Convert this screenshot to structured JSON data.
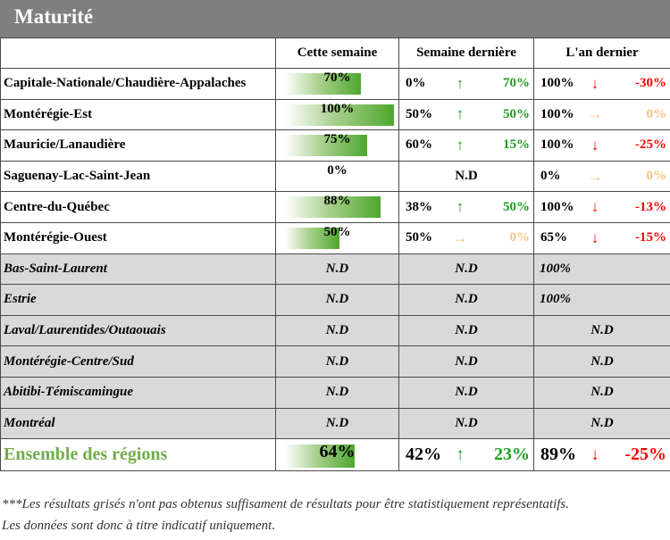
{
  "title": "Maturité",
  "headers": [
    "",
    "Cette semaine",
    "Semaine dernière",
    "L'an dernier"
  ],
  "rows": [
    {
      "name": "Capitale-Nationale/Chaudière-Appalaches",
      "this_week": "70%",
      "this_week_value": 0.7,
      "last_week": "0%",
      "lw_arrow": "↑",
      "lw_color": "#1e9e1e",
      "lw_delta": "70%",
      "last_year": "100%",
      "ly_arrow": "↓",
      "ly_color": "#ff0000",
      "ly_delta": "-30%"
    },
    {
      "name": "Montérégie-Est",
      "this_week": "100%",
      "this_week_value": 1.0,
      "last_week": "50%",
      "lw_arrow": "↑",
      "lw_color": "#1e9e1e",
      "lw_delta": "50%",
      "last_year": "100%",
      "ly_arrow": "→",
      "ly_color": "#f4c380",
      "ly_delta": "0%"
    },
    {
      "name": "Mauricie/Lanaudière",
      "this_week": "75%",
      "this_week_value": 0.75,
      "last_week": "60%",
      "lw_arrow": "↑",
      "lw_color": "#1e9e1e",
      "lw_delta": "15%",
      "last_year": "100%",
      "ly_arrow": "↓",
      "ly_color": "#ff0000",
      "ly_delta": "-25%"
    },
    {
      "name": "Saguenay-Lac-Saint-Jean",
      "this_week": "0%",
      "this_week_value": 0.0,
      "last_week_nd": "N.D",
      "last_year": "0%",
      "ly_arrow": "→",
      "ly_color": "#f4c380",
      "ly_delta": "0%"
    },
    {
      "name": "Centre-du-Québec",
      "this_week": "88%",
      "this_week_value": 0.88,
      "last_week": "38%",
      "lw_arrow": "↑",
      "lw_color": "#1e9e1e",
      "lw_delta": "50%",
      "last_year": "100%",
      "ly_arrow": "↓",
      "ly_color": "#ff0000",
      "ly_delta": "-13%"
    },
    {
      "name": "Montérégie-Ouest",
      "this_week": "50%",
      "this_week_value": 0.5,
      "last_week": "50%",
      "lw_arrow": "→",
      "lw_color": "#f4c380",
      "lw_delta": "0%",
      "last_year": "65%",
      "ly_arrow": "↓",
      "ly_color": "#ff0000",
      "ly_delta": "-15%"
    }
  ],
  "grey_rows": [
    {
      "name": "Bas-Saint-Laurent",
      "this_week": "N.D",
      "last_week": "N.D",
      "last_year": "100%"
    },
    {
      "name": "Estrie",
      "this_week": "N.D",
      "last_week": "N.D",
      "last_year": "100%"
    },
    {
      "name": "Laval/Laurentides/Outaouais",
      "this_week": "N.D",
      "last_week": "N.D",
      "last_year": "N.D"
    },
    {
      "name": "Montérégie-Centre/Sud",
      "this_week": "N.D",
      "last_week": "N.D",
      "last_year": "N.D"
    },
    {
      "name": "Abitibi-Témiscamingue",
      "this_week": "N.D",
      "last_week": "N.D",
      "last_year": "N.D"
    },
    {
      "name": "Montréal",
      "this_week": "N.D",
      "last_week": "N.D",
      "last_year": "N.D"
    }
  ],
  "total": {
    "name": "Ensemble des régions",
    "this_week": "64%",
    "this_week_value": 0.64,
    "last_week": "42%",
    "lw_arrow": "↑",
    "lw_color": "#1e9e1e",
    "lw_delta": "23%",
    "last_year": "89%",
    "ly_arrow": "↓",
    "ly_color": "#ff0000",
    "ly_delta": "-25%"
  },
  "footnote_line1": "***Les résultats grisés n'ont pas obtenus suffisament de résultats pour être statistiquement représentatifs.",
  "footnote_line2": "Les données sont donc à titre indicatif uniquement."
}
